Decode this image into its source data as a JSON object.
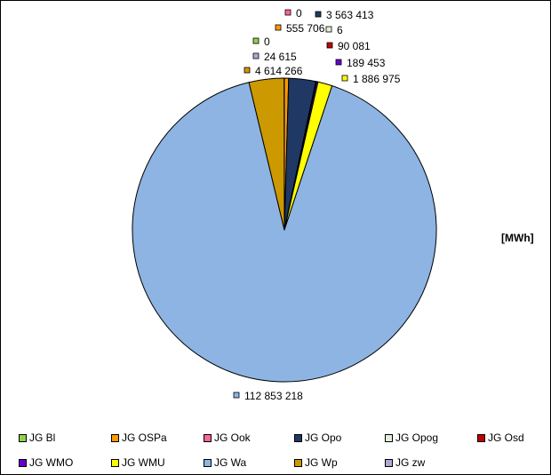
{
  "unit_label": "[MWh]",
  "chart_data": {
    "type": "pie",
    "unit": "[MWh]",
    "slices": [
      {
        "name": "JG Bl",
        "value": 0,
        "color": "#92d050",
        "label": "0"
      },
      {
        "name": "JG OSPa",
        "value": 555706,
        "color": "#ff9900",
        "label": "555 706"
      },
      {
        "name": "JG Ook",
        "value": 0,
        "color": "#ff6699",
        "label": "0"
      },
      {
        "name": "JG Opo",
        "value": 3563413,
        "color": "#1f3864",
        "label": "3 563 413"
      },
      {
        "name": "JG Opog",
        "value": 6,
        "color": "#e2efda",
        "label": "6"
      },
      {
        "name": "JG Osd",
        "value": 90081,
        "color": "#c00000",
        "label": "90 081"
      },
      {
        "name": "JG WMO",
        "value": 189453,
        "color": "#6600cc",
        "label": "189 453"
      },
      {
        "name": "JG WMU",
        "value": 1886975,
        "color": "#ffff00",
        "label": "1 886 975"
      },
      {
        "name": "JG Wa",
        "value": 112853218,
        "color": "#8db4e2",
        "label": "112 853 218"
      },
      {
        "name": "JG Wp",
        "value": 4614266,
        "color": "#cc9900",
        "label": "4 614 266"
      },
      {
        "name": "JG zw",
        "value": 24615,
        "color": "#b4a7d6",
        "label": "24 615"
      }
    ],
    "legend_order": [
      "JG Bl",
      "JG OSPa",
      "JG Ook",
      "JG Opo",
      "JG Opog",
      "JG Osd",
      "JG WMO",
      "JG WMU",
      "JG Wa",
      "JG Wp",
      "JG zw"
    ],
    "legend_position": "bottom"
  }
}
